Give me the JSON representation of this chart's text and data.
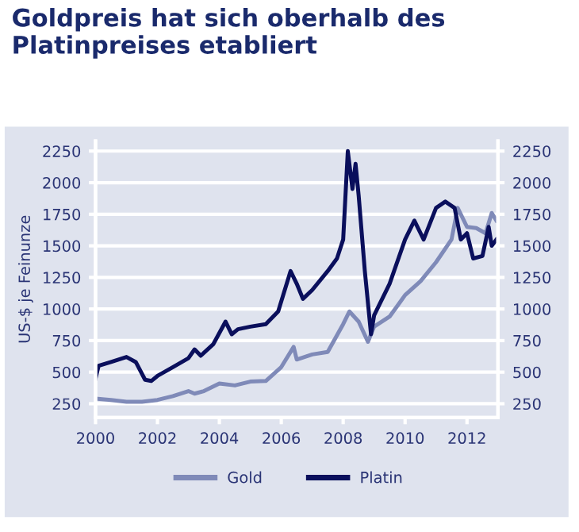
{
  "chart_data": {
    "type": "line",
    "title": "Goldpreis hat sich oberhalb des\nPlatinpreises etabliert",
    "ylabel": "US-$ je Feinunze",
    "xlim": [
      2000,
      2013
    ],
    "xticks": [
      2000,
      2002,
      2004,
      2006,
      2008,
      2010,
      2012
    ],
    "ylim": [
      140,
      2330
    ],
    "yticks": [
      250,
      500,
      750,
      1000,
      1250,
      1500,
      1750,
      2000,
      2250
    ],
    "y2lim": [
      140,
      2330
    ],
    "y2ticks": [
      250,
      500,
      750,
      1000,
      1250,
      1500,
      1750,
      2000,
      2250
    ],
    "grid": "y",
    "legend": "bottom",
    "line_style": "solid",
    "marker": "none",
    "series": [
      {
        "name": "Gold",
        "color": "#7f8ab8",
        "x": [
          2000,
          2000.5,
          2001,
          2001.5,
          2002,
          2002.5,
          2003,
          2003.2,
          2003.5,
          2004,
          2004.5,
          2005,
          2005.5,
          2006,
          2006.4,
          2006.5,
          2007,
          2007.5,
          2008,
          2008.2,
          2008.5,
          2008.8,
          2009,
          2009.5,
          2010,
          2010.5,
          2011,
          2011.5,
          2011.7,
          2012,
          2012.3,
          2012.6,
          2012.8,
          2012.95
        ],
        "values": [
          290,
          280,
          265,
          265,
          280,
          310,
          350,
          330,
          350,
          410,
          395,
          425,
          430,
          540,
          700,
          600,
          640,
          660,
          880,
          980,
          900,
          740,
          860,
          940,
          1110,
          1220,
          1370,
          1550,
          1800,
          1650,
          1640,
          1600,
          1760,
          1700
        ]
      },
      {
        "name": "Platin",
        "color": "#0a0f5c",
        "x": [
          2000,
          2000.1,
          2000.5,
          2001,
          2001.3,
          2001.6,
          2001.8,
          2002,
          2002.5,
          2003,
          2003.2,
          2003.4,
          2003.8,
          2004.2,
          2004.4,
          2004.6,
          2005,
          2005.5,
          2005.9,
          2006.3,
          2006.5,
          2006.7,
          2007,
          2007.5,
          2007.8,
          2008,
          2008.15,
          2008.3,
          2008.4,
          2008.5,
          2008.7,
          2008.9,
          2009,
          2009.5,
          2010,
          2010.3,
          2010.6,
          2011,
          2011.3,
          2011.6,
          2011.8,
          2012,
          2012.2,
          2012.5,
          2012.7,
          2012.8,
          2012.95
        ],
        "values": [
          450,
          550,
          580,
          620,
          580,
          440,
          430,
          470,
          540,
          610,
          680,
          630,
          720,
          900,
          800,
          840,
          860,
          880,
          980,
          1300,
          1200,
          1080,
          1150,
          1300,
          1400,
          1550,
          2250,
          1950,
          2150,
          1900,
          1300,
          800,
          950,
          1200,
          1550,
          1700,
          1550,
          1800,
          1850,
          1800,
          1550,
          1600,
          1400,
          1420,
          1650,
          1500,
          1550
        ]
      }
    ]
  }
}
